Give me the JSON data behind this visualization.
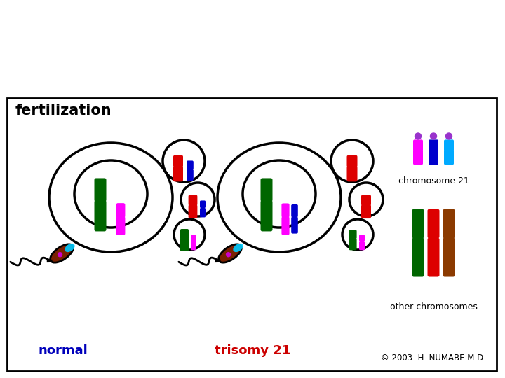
{
  "title": "fertilization",
  "label_normal": "normal",
  "label_trisomy": "trisomy 21",
  "label_chr21": "chromosome 21",
  "label_other": "other chromosomes",
  "label_copyright": "© 2003  H. NUMABE M.D.",
  "normal_label_color": "#0000bb",
  "trisomy_label_color": "#cc0000",
  "green_chr": "#006600",
  "red_chr": "#dd0000",
  "magenta_chr": "#ff00ff",
  "blue_chr": "#0000cc",
  "cyan_chr": "#00ccff",
  "purple_dot": "#9933cc",
  "brown_head": "#7a2000",
  "cyan_acrosome": "#00ccff",
  "other_chr_colors": [
    "#006600",
    "#dd0000",
    "#8b3a00"
  ],
  "chr21_colors": [
    "#ff00ff",
    "#0000cc",
    "#00aaff"
  ]
}
